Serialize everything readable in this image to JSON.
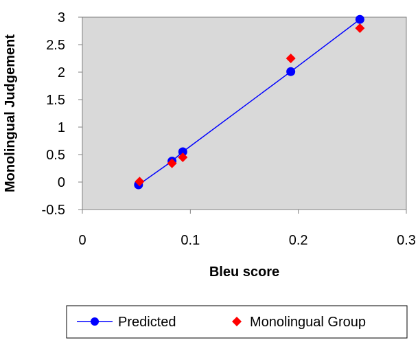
{
  "chart_data": {
    "type": "scatter",
    "xlabel": "Bleu score",
    "ylabel": "Monolingual Judgement",
    "xlim": [
      0,
      0.3
    ],
    "ylim": [
      -0.5,
      3
    ],
    "x_ticks": [
      0,
      0.1,
      0.2,
      0.3
    ],
    "x_tick_labels": [
      "0",
      "0.1",
      "0.2",
      "0.3"
    ],
    "y_ticks": [
      -0.5,
      0,
      0.5,
      1,
      1.5,
      2,
      2.5,
      3
    ],
    "y_tick_labels": [
      "-0.5",
      "0",
      "0.5",
      "1",
      "1.5",
      "2",
      "2.5",
      "3"
    ],
    "plot_background": "#d9d9d9",
    "legend_position": "bottom",
    "series": [
      {
        "name": "Predicted",
        "style": "line-with-circle-markers",
        "color": "#0000ff",
        "x": [
          0.052,
          0.083,
          0.093,
          0.193,
          0.257
        ],
        "y": [
          -0.05,
          0.38,
          0.55,
          2.01,
          2.96
        ]
      },
      {
        "name": "Monolingual Group",
        "style": "diamond-markers",
        "color": "#ff0000",
        "x": [
          0.053,
          0.083,
          0.093,
          0.193,
          0.257
        ],
        "y": [
          0.01,
          0.34,
          0.45,
          2.25,
          2.8
        ]
      }
    ]
  }
}
